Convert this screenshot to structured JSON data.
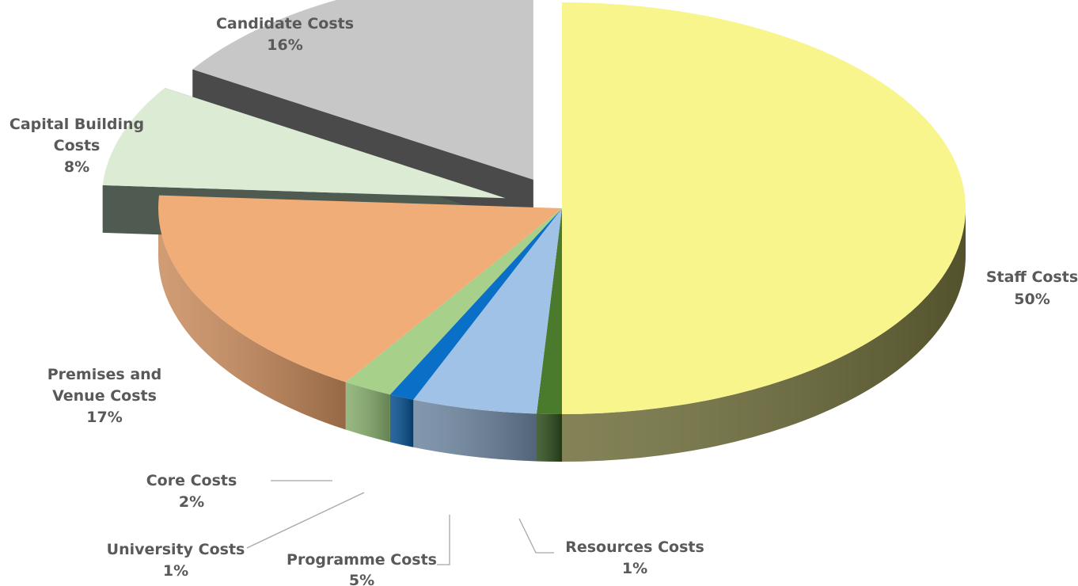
{
  "chart_data": {
    "type": "pie",
    "title": "",
    "slices": [
      {
        "name": "Staff Costs",
        "value": 50,
        "label": "50%",
        "color": "#f8f58d",
        "side_color": "#6e6d3a",
        "exploded": false
      },
      {
        "name": "Resources Costs",
        "value": 1,
        "label": "1%",
        "color": "#4a7a2c",
        "side_color": "#2b4a1a",
        "exploded": false
      },
      {
        "name": "Programme Costs",
        "value": 5,
        "label": "5%",
        "color": "#9fc2e6",
        "side_color": "#6d85a0",
        "exploded": false
      },
      {
        "name": "University Costs",
        "value": 1,
        "label": "1%",
        "color": "#0a6fc7",
        "side_color": "#064e8f",
        "exploded": false
      },
      {
        "name": "Core Costs",
        "value": 2,
        "label": "2%",
        "color": "#a7d08b",
        "side_color": "#86ad6c",
        "exploded": false
      },
      {
        "name": "Premises and Venue Costs",
        "value": 17,
        "label": "17%",
        "color": "#f0ad78",
        "side_color": "#c98b5c",
        "exploded": false
      },
      {
        "name": "Capital Building Costs",
        "value": 8,
        "label": "8%",
        "color": "#dcebd3",
        "side_color": "#4f5a50",
        "exploded": true
      },
      {
        "name": "Candidate Costs",
        "value": 16,
        "label": "16%",
        "color": "#c7c7c7",
        "side_color": "#4a4a4a",
        "exploded": true
      }
    ],
    "legend": "none"
  }
}
